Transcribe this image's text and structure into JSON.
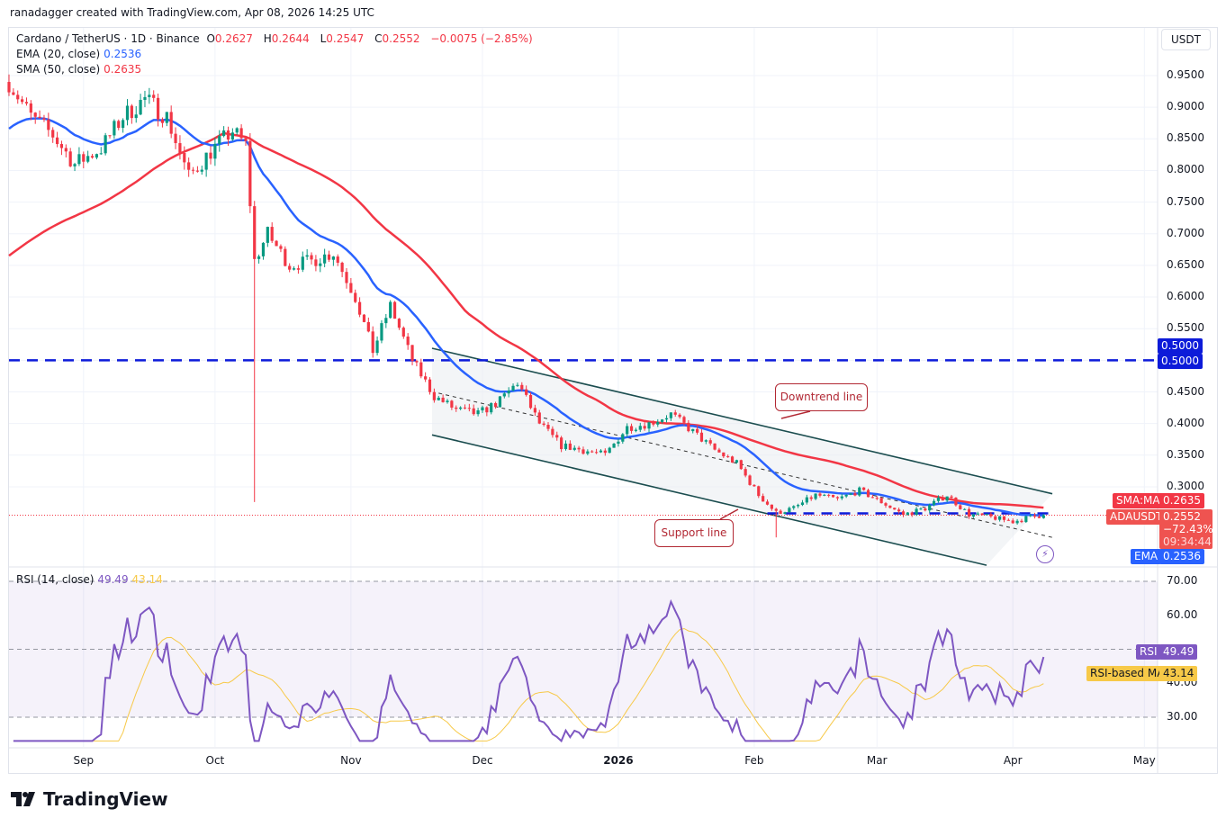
{
  "header": {
    "credit": "ranadagger created with TradingView.com, Apr 08, 2026 14:25 UTC"
  },
  "legend": {
    "symbol": "Cardano / TetherUS · 1D · Binance",
    "o_label": "O",
    "o": "0.2627",
    "h_label": "H",
    "h": "0.2644",
    "l_label": "L",
    "l": "0.2547",
    "c_label": "C",
    "c": "0.2552",
    "change": "−0.0075 (−2.85%)",
    "ema_label": "EMA (20, close)",
    "ema": "0.2536",
    "sma_label": "SMA (50, close)",
    "sma": "0.2635"
  },
  "rsi_legend": {
    "label": "RSI (14, close)",
    "rsi": "49.49",
    "ma": "43.14"
  },
  "axis": {
    "currency": "USDT"
  },
  "labels": {
    "sma_tag": "SMA:MA",
    "sma_val": "0.2635",
    "pair": "ADAUSDT",
    "price": "0.2552",
    "pct": "−72.43%",
    "countdown": "09:34:44",
    "ema_tag": "EMA",
    "ema_val": "0.2536",
    "level1": "0.5000",
    "level2": "0.5000",
    "rsi_tag": "RSI",
    "rsi_val": "49.49",
    "rsima_tag": "RSI-based MA",
    "rsima_val": "43.14"
  },
  "annotations": {
    "downtrend": "Downtrend line",
    "support": "Support line"
  },
  "logo": "TradingView",
  "chart_data": {
    "type": "candlestick",
    "title": "Cardano / TetherUS · 1D · Binance",
    "price_ticks": [
      "0.9500",
      "0.9000",
      "0.8500",
      "0.8000",
      "0.7500",
      "0.7000",
      "0.6500",
      "0.6000",
      "0.5500",
      "0.4500",
      "0.4000",
      "0.3500",
      "0.3000"
    ],
    "price_range": [
      0.165,
      0.99
    ],
    "rsi_ticks": [
      "70.00",
      "60.00",
      "40.00",
      "30.00"
    ],
    "rsi_range": [
      22,
      75
    ],
    "x_ticks": [
      {
        "label": "Sep",
        "day": 17
      },
      {
        "label": "Oct",
        "day": 47
      },
      {
        "label": "Nov",
        "day": 78
      },
      {
        "label": "Dec",
        "day": 108
      },
      {
        "label": "2026",
        "day": 139
      },
      {
        "label": "Feb",
        "day": 170
      },
      {
        "label": "Mar",
        "day": 198
      },
      {
        "label": "Apr",
        "day": 229
      },
      {
        "label": "May",
        "day": 259
      }
    ],
    "close_path": [
      [
        0,
        0.94
      ],
      [
        5,
        0.885
      ],
      [
        10,
        0.856
      ],
      [
        15,
        0.81
      ],
      [
        21,
        0.835
      ],
      [
        26,
        0.885
      ],
      [
        31,
        0.913
      ],
      [
        36,
        0.885
      ],
      [
        41,
        0.79
      ],
      [
        46,
        0.83
      ],
      [
        51,
        0.863
      ],
      [
        54,
        0.84
      ],
      [
        56,
        0.657
      ],
      [
        59,
        0.7
      ],
      [
        64,
        0.65
      ],
      [
        69,
        0.657
      ],
      [
        74,
        0.67
      ],
      [
        79,
        0.6
      ],
      [
        83,
        0.515
      ],
      [
        87,
        0.586
      ],
      [
        92,
        0.5
      ],
      [
        97,
        0.443
      ],
      [
        102,
        0.422
      ],
      [
        107,
        0.415
      ],
      [
        112,
        0.436
      ],
      [
        116,
        0.465
      ],
      [
        121,
        0.4
      ],
      [
        126,
        0.365
      ],
      [
        131,
        0.358
      ],
      [
        136,
        0.35
      ],
      [
        141,
        0.394
      ],
      [
        146,
        0.4
      ],
      [
        151,
        0.415
      ],
      [
        156,
        0.387
      ],
      [
        161,
        0.358
      ],
      [
        166,
        0.337
      ],
      [
        171,
        0.287
      ],
      [
        175,
        0.259
      ],
      [
        179,
        0.266
      ],
      [
        184,
        0.287
      ],
      [
        189,
        0.28
      ],
      [
        194,
        0.294
      ],
      [
        199,
        0.276
      ],
      [
        204,
        0.256
      ],
      [
        209,
        0.266
      ],
      [
        214,
        0.287
      ],
      [
        219,
        0.256
      ],
      [
        224,
        0.252
      ],
      [
        229,
        0.245
      ],
      [
        233,
        0.252
      ],
      [
        236,
        0.2552
      ]
    ],
    "wick_events": [
      {
        "day": 56,
        "low": 0.276
      },
      {
        "day": 175,
        "low": 0.22
      }
    ],
    "horizontal_levels": [
      {
        "price": 0.5,
        "from_day": 0
      },
      {
        "price": 0.258,
        "from_day": 173
      }
    ],
    "channel": {
      "upper": [
        [
          96.5,
          0.519
        ],
        [
          238,
          0.289
        ]
      ],
      "lower": [
        [
          96.5,
          0.382
        ],
        [
          223,
          0.176
        ]
      ],
      "mid": [
        [
          98,
          0.448
        ],
        [
          238,
          0.22
        ]
      ]
    },
    "indicators": [
      "EMA 20",
      "SMA 50",
      "RSI 14",
      "RSI-based MA 14"
    ],
    "colors": {
      "up": "#089981",
      "down": "#f23645",
      "ema": "#2962ff",
      "sma": "#f23645",
      "rsi": "#7e57c2",
      "rsi_ma": "#f7c948",
      "level": "#0d1bd9",
      "channel": "#1b4d4f"
    }
  }
}
